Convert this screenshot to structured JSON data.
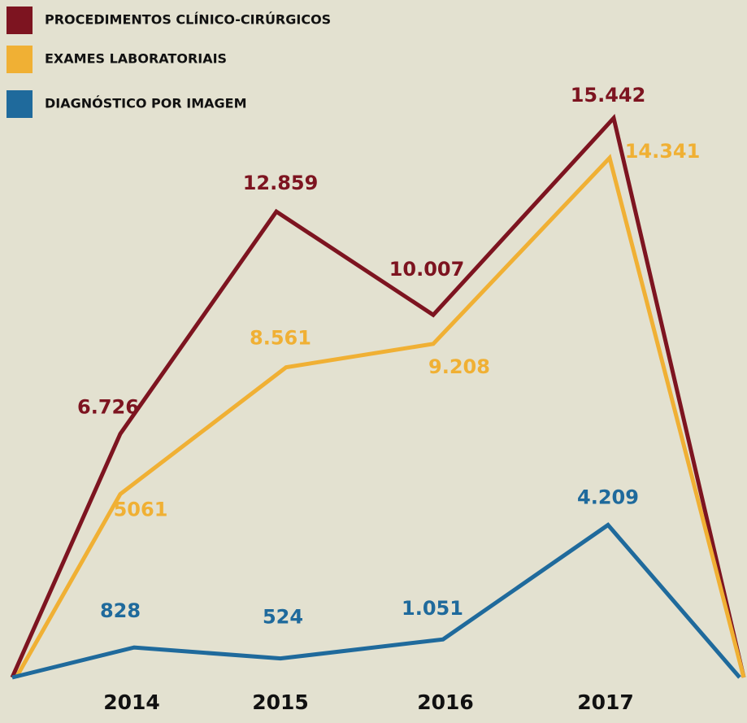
{
  "chart_data": {
    "type": "line",
    "categories": [
      null,
      "2014",
      "2015",
      "2016",
      "2017",
      null
    ],
    "series": [
      {
        "name": "PROCEDIMENTOS CLÍNICO-CIRÚRGICOS",
        "color": "#7d1420",
        "values": [
          0,
          6726,
          12859,
          10007,
          15442,
          0
        ],
        "value_labels": [
          null,
          "6.726",
          "12.859",
          "10.007",
          "15.442",
          null
        ]
      },
      {
        "name": "EXAMES LABORATORIAIS",
        "color": "#f0b034",
        "values": [
          0,
          5061,
          8561,
          9208,
          14341,
          0
        ],
        "value_labels": [
          null,
          "5061",
          "8.561",
          "9.208",
          "14.341",
          null
        ]
      },
      {
        "name": "DIAGNÓSTICO POR IMAGEM",
        "color": "#1f6a9c",
        "values": [
          0,
          828,
          524,
          1051,
          4209,
          0
        ],
        "value_labels": [
          null,
          "828",
          "524",
          "1.051",
          "4.209",
          null
        ]
      }
    ],
    "ylim": [
      0,
      18700
    ]
  }
}
